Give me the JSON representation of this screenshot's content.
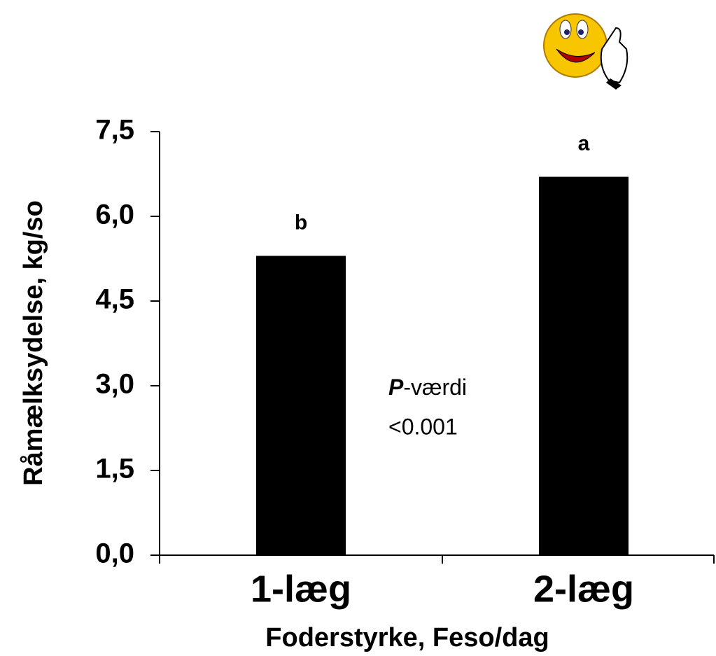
{
  "chart_data": {
    "type": "bar",
    "y_axis_label": "Råmælksydelse, kg/so",
    "x_axis_label": "Foderstyrke, Feso/dag",
    "categories": [
      "1-læg",
      "2-læg"
    ],
    "values": [
      5.3,
      6.7
    ],
    "letters": [
      "b",
      "a"
    ],
    "color": "#000000",
    "ylim": [
      0,
      7.5
    ],
    "yticks": [
      {
        "value": 0,
        "label": "0,0"
      },
      {
        "value": 1.5,
        "label": "1,5"
      },
      {
        "value": 3,
        "label": "3,0"
      },
      {
        "value": 4.5,
        "label": "4,5"
      },
      {
        "value": 6,
        "label": "6,0"
      },
      {
        "value": 7.5,
        "label": "7,5"
      }
    ],
    "annotation": {
      "p_symbol": "P",
      "p_word": "-værdi",
      "p_value": "<0.001"
    }
  }
}
